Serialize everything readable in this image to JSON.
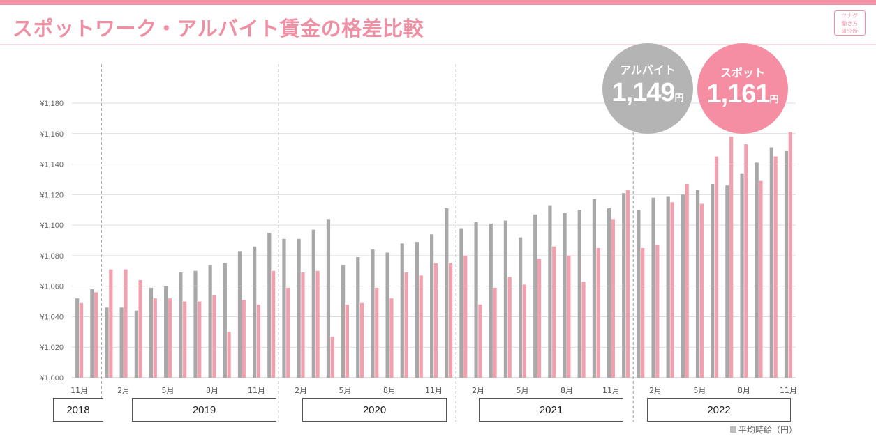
{
  "title": "スポットワーク・アルバイト賃金の格差比較",
  "logo_lines": [
    "ツナグ",
    "働き方",
    "研究所"
  ],
  "callouts": {
    "arubaito": {
      "label": "アルバイト",
      "value": "1,149",
      "unit": "円",
      "color": "#b4b4b4"
    },
    "spot": {
      "label": "スポット",
      "value": "1,161",
      "unit": "円",
      "color": "#f58ea2"
    }
  },
  "footnote": "平均時給（円）",
  "year_boxes": [
    "2018",
    "2019",
    "2020",
    "2021",
    "2022"
  ],
  "chart_data": {
    "type": "bar",
    "title": "スポットワーク・アルバイト賃金の格差比較",
    "ylabel": "平均時給（円）",
    "ylim": [
      1000,
      1180
    ],
    "y_ticks": [
      1000,
      1020,
      1040,
      1060,
      1080,
      1100,
      1120,
      1140,
      1160,
      1180
    ],
    "y_tick_labels": [
      "¥1,000",
      "¥1,020",
      "¥1,040",
      "¥1,060",
      "¥1,080",
      "¥1,100",
      "¥1,120",
      "¥1,140",
      "¥1,160",
      "¥1,180"
    ],
    "grid": true,
    "categories": [
      "2018-11",
      "2018-12",
      "2019-01",
      "2019-02",
      "2019-03",
      "2019-04",
      "2019-05",
      "2019-06",
      "2019-07",
      "2019-08",
      "2019-09",
      "2019-10",
      "2019-11",
      "2019-12",
      "2020-01",
      "2020-02",
      "2020-03",
      "2020-04",
      "2020-05",
      "2020-06",
      "2020-07",
      "2020-08",
      "2020-09",
      "2020-10",
      "2020-11",
      "2020-12",
      "2021-01",
      "2021-02",
      "2021-03",
      "2021-04",
      "2021-05",
      "2021-06",
      "2021-07",
      "2021-08",
      "2021-09",
      "2021-10",
      "2021-11",
      "2021-12",
      "2022-01",
      "2022-02",
      "2022-03",
      "2022-04",
      "2022-05",
      "2022-06",
      "2022-07",
      "2022-08",
      "2022-09",
      "2022-10",
      "2022-11"
    ],
    "x_tick_labels": [
      "11月",
      "",
      "",
      "2月",
      "",
      "",
      "5月",
      "",
      "",
      "8月",
      "",
      "",
      "11月",
      "",
      "",
      "2月",
      "",
      "",
      "5月",
      "",
      "",
      "8月",
      "",
      "",
      "11月",
      "",
      "",
      "2月",
      "",
      "",
      "5月",
      "",
      "",
      "8月",
      "",
      "",
      "11月",
      "",
      "",
      "2月",
      "",
      "",
      "5月",
      "",
      "",
      "8月",
      "",
      "",
      "11月"
    ],
    "year_separators_after": [
      "2018-12",
      "2019-12",
      "2020-12",
      "2021-12"
    ],
    "series": [
      {
        "name": "アルバイト",
        "color": "#a8a8a8",
        "values": [
          1052,
          1058,
          1046,
          1046,
          1044,
          1059,
          1060,
          1069,
          1070,
          1074,
          1075,
          1083,
          1086,
          1095,
          1091,
          1091,
          1097,
          1104,
          1074,
          1079,
          1084,
          1082,
          1088,
          1089,
          1094,
          1111,
          1098,
          1102,
          1101,
          1103,
          1092,
          1107,
          1113,
          1108,
          1110,
          1117,
          1111,
          1121,
          1110,
          1118,
          1119,
          1120,
          1123,
          1127,
          1126,
          1134,
          1141,
          1151,
          1149
        ]
      },
      {
        "name": "スポット",
        "color": "#f2a0ae",
        "values": [
          1049,
          1056,
          1071,
          1071,
          1064,
          1052,
          1052,
          1050,
          1050,
          1054,
          1030,
          1051,
          1048,
          1070,
          1059,
          1069,
          1070,
          1027,
          1048,
          1049,
          1059,
          1052,
          1069,
          1067,
          1075,
          1075,
          1080,
          1048,
          1059,
          1066,
          1061,
          1078,
          1086,
          1080,
          1063,
          1085,
          1104,
          1123,
          1085,
          1087,
          1115,
          1127,
          1114,
          1145,
          1158,
          1153,
          1129,
          1145,
          1161
        ]
      }
    ]
  }
}
